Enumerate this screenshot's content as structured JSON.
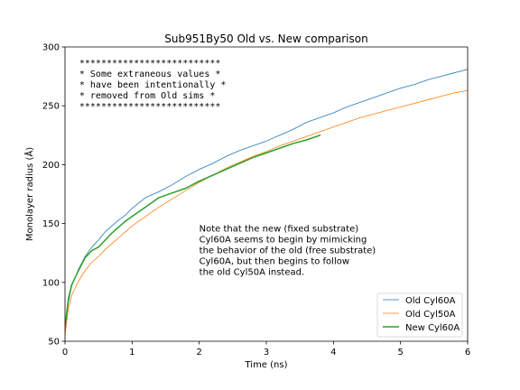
{
  "chart_data": {
    "type": "line",
    "title": "Sub951By50 Old vs. New comparison",
    "xlabel": "Time (ns)",
    "ylabel": "Monolayer radius (Å)",
    "xlim": [
      0,
      6
    ],
    "ylim": [
      50,
      300
    ],
    "xticks": [
      0,
      1,
      2,
      3,
      4,
      5,
      6
    ],
    "yticks": [
      50,
      100,
      150,
      200,
      250,
      300
    ],
    "grid": false,
    "legend_position": "lower right",
    "series": [
      {
        "name": "Old Cyl60A",
        "color": "#1f77b4",
        "linewidth": 0.8,
        "x": [
          0,
          0.05,
          0.1,
          0.2,
          0.3,
          0.4,
          0.5,
          0.6,
          0.7,
          0.8,
          0.9,
          1.0,
          1.2,
          1.4,
          1.6,
          1.8,
          2.0,
          2.2,
          2.4,
          2.6,
          2.8,
          3.0,
          3.2,
          3.4,
          3.6,
          3.8,
          4.0,
          4.2,
          4.4,
          4.6,
          4.8,
          5.0,
          5.2,
          5.4,
          5.6,
          5.8,
          6.0
        ],
        "y": [
          60,
          83,
          97,
          111,
          122,
          130,
          136,
          143,
          148,
          153,
          157,
          163,
          172,
          177,
          183,
          190,
          196,
          201,
          207,
          212,
          216,
          220,
          225,
          230,
          236,
          240,
          244,
          249,
          253,
          257,
          261,
          265,
          268,
          272,
          275,
          278,
          281
        ]
      },
      {
        "name": "Old Cyl50A",
        "color": "#ff7f0e",
        "linewidth": 0.8,
        "x": [
          0,
          0.05,
          0.1,
          0.2,
          0.3,
          0.4,
          0.5,
          0.6,
          0.7,
          0.8,
          0.9,
          1.0,
          1.2,
          1.4,
          1.6,
          1.8,
          2.0,
          2.2,
          2.4,
          2.6,
          2.8,
          3.0,
          3.2,
          3.4,
          3.6,
          3.8,
          4.0,
          4.2,
          4.4,
          4.6,
          4.8,
          5.0,
          5.2,
          5.4,
          5.6,
          5.8,
          6.0
        ],
        "y": [
          55,
          78,
          89,
          101,
          110,
          117,
          122,
          128,
          133,
          138,
          143,
          148,
          156,
          164,
          171,
          178,
          185,
          191,
          197,
          202,
          207,
          211,
          216,
          220,
          224,
          228,
          232,
          236,
          240,
          243,
          246,
          249,
          252,
          255,
          258,
          261,
          263
        ]
      },
      {
        "name": "New Cyl60A",
        "color": "#2ca02c",
        "linewidth": 1.5,
        "x": [
          0,
          0.05,
          0.1,
          0.2,
          0.3,
          0.4,
          0.5,
          0.6,
          0.7,
          0.8,
          0.9,
          1.0,
          1.2,
          1.4,
          1.6,
          1.8,
          2.0,
          2.2,
          2.4,
          2.6,
          2.8,
          3.0,
          3.2,
          3.4,
          3.6,
          3.8
        ],
        "y": [
          62,
          86,
          98,
          110,
          121,
          127,
          130,
          136,
          142,
          147,
          152,
          156,
          164,
          172,
          176,
          180,
          186,
          191,
          196,
          201,
          206,
          210,
          214,
          218,
          221,
          225
        ]
      }
    ],
    "annotations": [
      {
        "name": "box",
        "x": 0.2,
        "y": 290,
        "lines": [
          "**************************",
          "* Some extraneous values  *",
          "* have been intentionally *",
          "* removed from Old sims   *",
          "**************************"
        ]
      },
      {
        "name": "note",
        "x": 2.0,
        "y": 143,
        "lines": [
          "Note that the new (fixed substrate)",
          "Cyl60A seems to begin by mimicking",
          "the behavior of the old (free substrate)",
          "Cyl60A, but then begins to follow",
          "the old Cyl50A instead."
        ]
      }
    ]
  }
}
